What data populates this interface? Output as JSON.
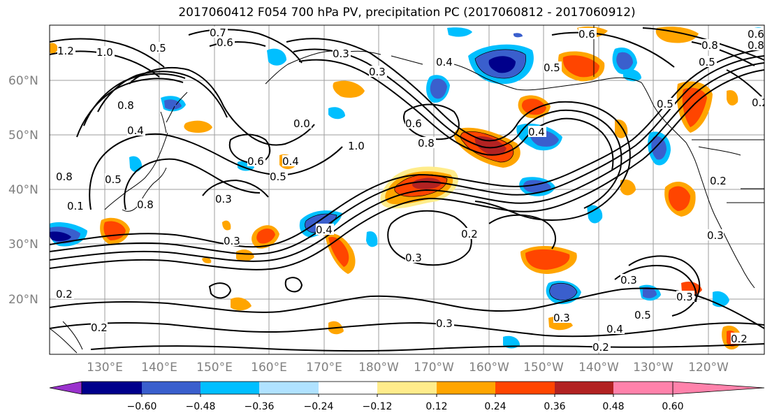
{
  "title": "2017060412 F054 700 hPa PV, precipitation PC (2017060812 - 2017060912)",
  "lat_labels": [
    "60°N",
    "50°N",
    "40°N",
    "30°N",
    "20°N"
  ],
  "lon_labels": [
    "130°E",
    "140°E",
    "150°E",
    "160°E",
    "170°E",
    "180°W",
    "170°W",
    "160°W",
    "150°W",
    "140°W",
    "130°W",
    "120°W"
  ],
  "colorbar": {
    "colors": [
      "#9a32cd",
      "#00008b",
      "#3a5fcd",
      "#00bfff",
      "#b0e2ff",
      "#ffffff",
      "#ffec8b",
      "#ffa500",
      "#ff4500",
      "#b22222",
      "#ff82ab"
    ],
    "ticks": [
      "−0.60",
      "−0.48",
      "−0.36",
      "−0.24",
      "−0.12",
      "0.12",
      "0.24",
      "0.36",
      "0.48",
      "0.60"
    ]
  },
  "contour_labels": [
    "0.7",
    "0.6",
    "0.5",
    "1.2",
    "1.0",
    "0.3",
    "0.4",
    "0.6",
    "0.5",
    "0.8",
    "0.6",
    "0.8",
    "0.5",
    "0.3",
    "0.4",
    "0.0",
    "0.8",
    "1.0",
    "0.6",
    "0.8",
    "0.4",
    "0.3",
    "0.5",
    "0.4",
    "0.6",
    "0.3",
    "0.2",
    "0.4",
    "0.3",
    "0.2",
    "0.3",
    "0.3",
    "0.4",
    "0.2",
    "0.2",
    "0.3",
    "0.5",
    "0.3",
    "0.2",
    "0.5",
    "0.2",
    "0.8",
    "0.5",
    "0.3",
    "0.2",
    "0.8",
    "0.1"
  ]
}
